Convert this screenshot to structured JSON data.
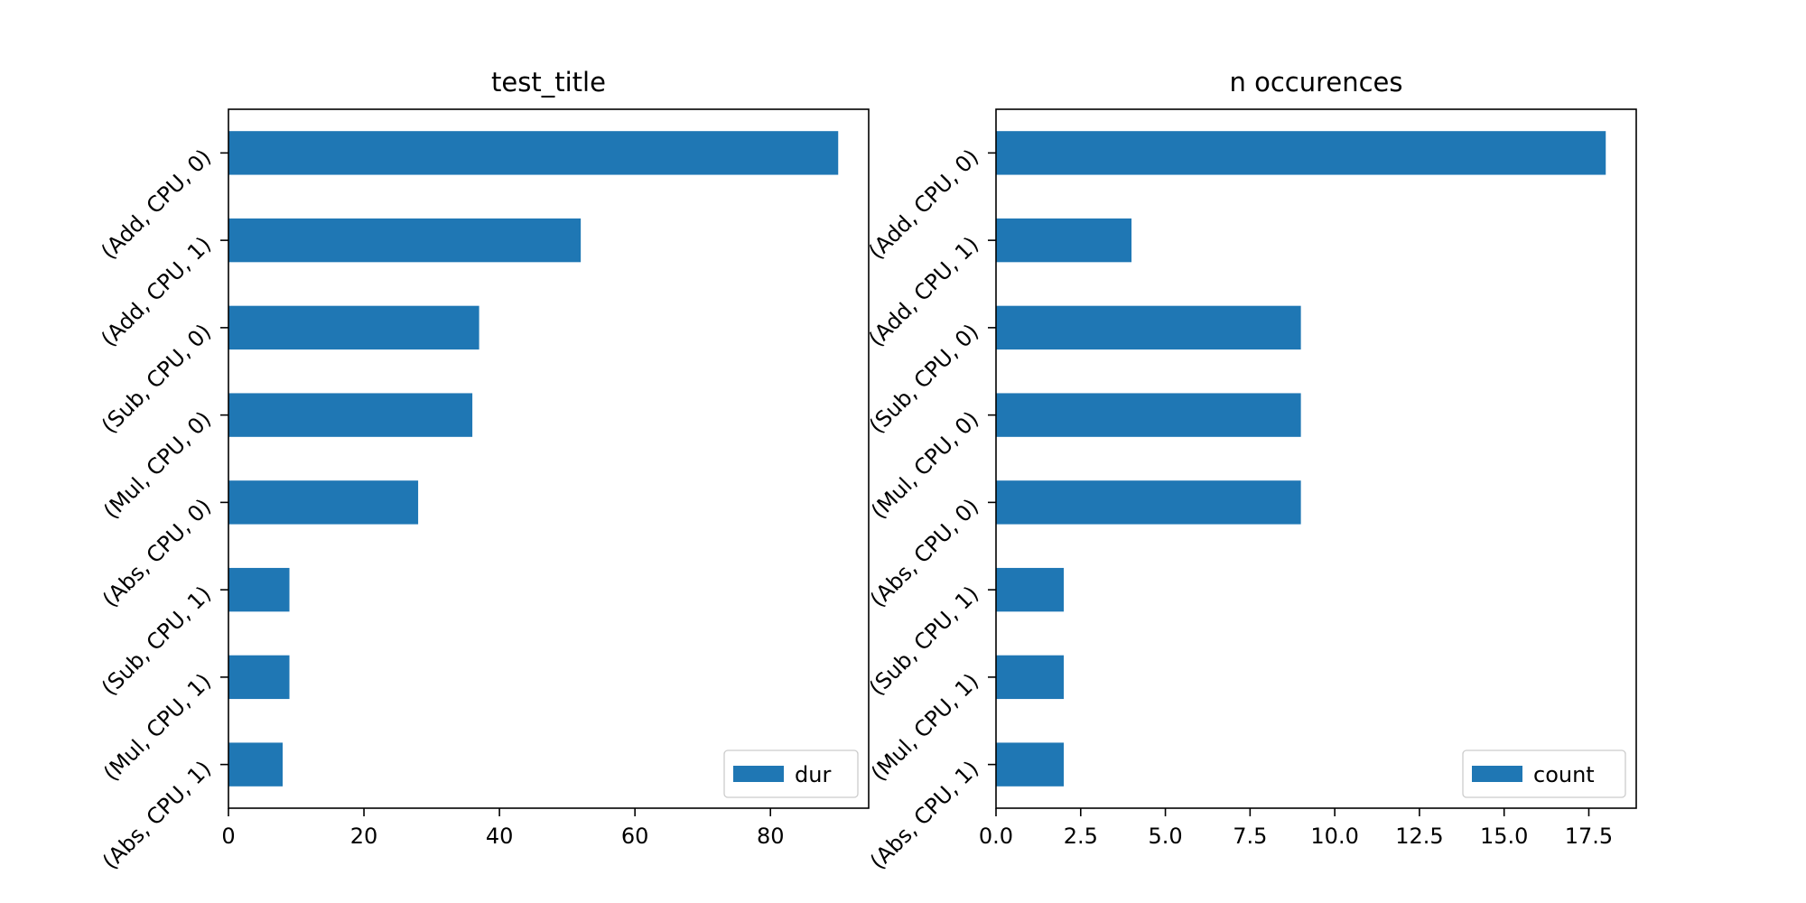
{
  "chart_data": [
    {
      "type": "bar",
      "orientation": "horizontal",
      "title": "test_title",
      "xlabel": "",
      "ylabel": "",
      "categories": [
        "(Add, CPU, 0)",
        "(Add, CPU, 1)",
        "(Sub, CPU, 0)",
        "(Mul, CPU, 0)",
        "(Abs, CPU, 0)",
        "(Sub, CPU, 1)",
        "(Mul, CPU, 1)",
        "(Abs, CPU, 1)"
      ],
      "series": [
        {
          "name": "dur",
          "values": [
            90,
            52,
            37,
            36,
            28,
            9,
            9,
            8
          ]
        }
      ],
      "xlim": [
        0,
        94.5
      ],
      "xticks": [
        0,
        20,
        40,
        60,
        80
      ],
      "xtick_labels": [
        "0",
        "20",
        "40",
        "60",
        "80"
      ],
      "ytick_rotation": 45,
      "grid": false,
      "legend": "lower right",
      "bar_color": "#1f77b4"
    },
    {
      "type": "bar",
      "orientation": "horizontal",
      "title": "n occurences",
      "xlabel": "",
      "ylabel": "",
      "categories": [
        "(Add, CPU, 0)",
        "(Add, CPU, 1)",
        "(Sub, CPU, 0)",
        "(Mul, CPU, 0)",
        "(Abs, CPU, 0)",
        "(Sub, CPU, 1)",
        "(Mul, CPU, 1)",
        "(Abs, CPU, 1)"
      ],
      "series": [
        {
          "name": "count",
          "values": [
            18,
            4,
            9,
            9,
            9,
            2,
            2,
            2
          ]
        }
      ],
      "xlim": [
        0,
        18.9
      ],
      "xticks": [
        0,
        2.5,
        5,
        7.5,
        10,
        12.5,
        15,
        17.5
      ],
      "xtick_labels": [
        "0.0",
        "2.5",
        "5.0",
        "7.5",
        "10.0",
        "12.5",
        "15.0",
        "17.5"
      ],
      "ytick_rotation": 45,
      "grid": false,
      "legend": "lower right",
      "bar_color": "#1f77b4"
    }
  ]
}
